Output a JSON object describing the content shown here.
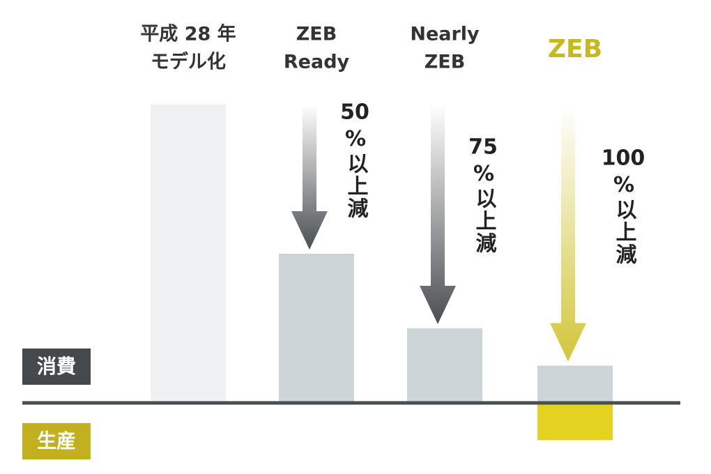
{
  "chart_data": {
    "type": "bar",
    "categories": [
      [
        "平成 28 年",
        "モデル化"
      ],
      [
        "ZEB",
        "Ready"
      ],
      [
        "Nearly",
        "ZEB"
      ],
      [
        "ZEB"
      ]
    ],
    "series": [
      {
        "name": "消費",
        "color": "#ccd5d8",
        "values": [
          100,
          50,
          25,
          12.5
        ]
      },
      {
        "name": "生産",
        "color": "#e3d320",
        "values": [
          null,
          null,
          null,
          -12.5
        ]
      }
    ],
    "first_bar_color": "#eef0f1",
    "highlight_color": "#c6b81e",
    "reductions": [
      null,
      50,
      75,
      100
    ],
    "reduction_suffix": "%以上減",
    "ylim": [
      -20,
      100
    ]
  }
}
